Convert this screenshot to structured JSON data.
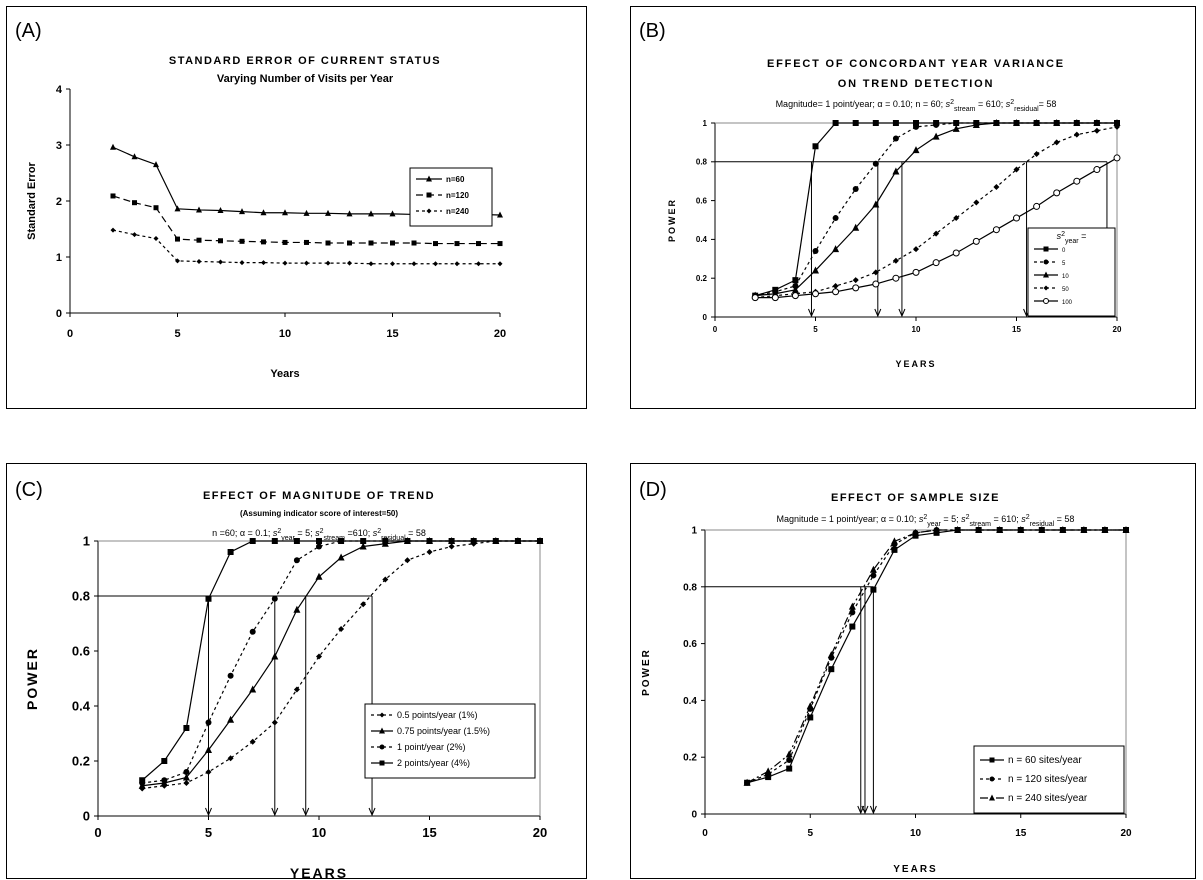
{
  "chart_data": [
    {
      "panel_label": "(A)",
      "type": "line",
      "title": "STANDARD ERROR OF CURRENT STATUS",
      "subtitle": "Varying Number of Visits per Year",
      "xlabel": "Years",
      "ylabel": "Standard Error",
      "xlim": [
        0,
        20
      ],
      "ylim": [
        0,
        4
      ],
      "xticks": [
        "0",
        "5",
        "10",
        "15",
        "20"
      ],
      "yticks": [
        "0",
        "1",
        "2",
        "3",
        "4"
      ],
      "grid": false,
      "legend_placement": "right",
      "x": [
        2,
        3,
        4,
        5,
        6,
        7,
        8,
        9,
        10,
        11,
        12,
        13,
        14,
        15,
        16,
        17,
        18,
        19,
        20
      ],
      "series": [
        {
          "name": "n=60",
          "marker": "triangle",
          "dash": "solid",
          "values": [
            2.96,
            2.79,
            2.65,
            1.86,
            1.84,
            1.83,
            1.81,
            1.79,
            1.79,
            1.78,
            1.78,
            1.77,
            1.77,
            1.77,
            1.76,
            1.76,
            1.76,
            1.76,
            1.75
          ]
        },
        {
          "name": "n=120",
          "marker": "square",
          "dash": "dash",
          "values": [
            2.09,
            1.97,
            1.88,
            1.32,
            1.3,
            1.29,
            1.28,
            1.27,
            1.26,
            1.26,
            1.25,
            1.25,
            1.25,
            1.25,
            1.25,
            1.24,
            1.24,
            1.24,
            1.24
          ]
        },
        {
          "name": "n=240",
          "marker": "diamond",
          "dash": "dot",
          "values": [
            1.48,
            1.4,
            1.33,
            0.93,
            0.92,
            0.91,
            0.9,
            0.9,
            0.89,
            0.89,
            0.89,
            0.89,
            0.88,
            0.88,
            0.88,
            0.88,
            0.88,
            0.88,
            0.88
          ]
        }
      ]
    },
    {
      "panel_label": "(B)",
      "type": "line",
      "title": "EFFECT OF CONCORDANT YEAR VARIANCE",
      "title2": "ON TREND DETECTION",
      "params": "Magnitude= 1 point/year; α = 0.10; n = 60; s²stream = 610; s²residual = 58",
      "xlabel": "YEARS",
      "ylabel": "POWER",
      "xlim": [
        0,
        20
      ],
      "ylim": [
        0,
        1
      ],
      "xticks": [
        "0",
        "5",
        "10",
        "15",
        "20"
      ],
      "yticks": [
        "0",
        "0.2",
        "0.4",
        "0.6",
        "0.8",
        "1"
      ],
      "legend_title": "s²year =",
      "legend_placement": "bottom-right",
      "reference_line": 0.8,
      "arrows_at_x": [
        4.8,
        8.1,
        9.3,
        15.5,
        19.5
      ],
      "x": [
        2,
        3,
        4,
        5,
        6,
        7,
        8,
        9,
        10,
        11,
        12,
        13,
        14,
        15,
        16,
        17,
        18,
        19,
        20
      ],
      "series": [
        {
          "name": "0",
          "marker": "square",
          "dash": "solid",
          "values": [
            0.11,
            0.14,
            0.19,
            0.88,
            1.0,
            1.0,
            1.0,
            1.0,
            1.0,
            1.0,
            1.0,
            1.0,
            1.0,
            1.0,
            1.0,
            1.0,
            1.0,
            1.0,
            1.0
          ]
        },
        {
          "name": "5",
          "marker": "circle",
          "dash": "dot",
          "values": [
            0.11,
            0.13,
            0.16,
            0.34,
            0.51,
            0.66,
            0.79,
            0.92,
            0.98,
            0.99,
            1.0,
            1.0,
            1.0,
            1.0,
            1.0,
            1.0,
            1.0,
            1.0,
            1.0
          ]
        },
        {
          "name": "10",
          "marker": "triangle",
          "dash": "solid",
          "values": [
            0.11,
            0.12,
            0.14,
            0.24,
            0.35,
            0.46,
            0.58,
            0.75,
            0.86,
            0.93,
            0.97,
            0.99,
            1.0,
            1.0,
            1.0,
            1.0,
            1.0,
            1.0,
            1.0
          ]
        },
        {
          "name": "50",
          "marker": "diamond",
          "dash": "dot",
          "values": [
            0.1,
            0.11,
            0.12,
            0.13,
            0.16,
            0.19,
            0.23,
            0.29,
            0.35,
            0.43,
            0.51,
            0.59,
            0.67,
            0.76,
            0.84,
            0.9,
            0.94,
            0.96,
            0.98
          ]
        },
        {
          "name": "100",
          "marker": "open-circle",
          "dash": "solid",
          "values": [
            0.1,
            0.1,
            0.11,
            0.12,
            0.13,
            0.15,
            0.17,
            0.2,
            0.23,
            0.28,
            0.33,
            0.39,
            0.45,
            0.51,
            0.57,
            0.64,
            0.7,
            0.76,
            0.82
          ]
        }
      ]
    },
    {
      "panel_label": "(C)",
      "type": "line",
      "title": "EFFECT OF MAGNITUDE OF TREND",
      "subtitle": "(Assuming indicator score of interest=50)",
      "params": "n =60; α = 0.1; s²year = 5; s²stream =610; s²residual = 58",
      "xlabel": "YEARS",
      "ylabel": "POWER",
      "xlim": [
        0,
        20
      ],
      "ylim": [
        0,
        1
      ],
      "xticks": [
        "0",
        "5",
        "10",
        "15",
        "20"
      ],
      "yticks": [
        "0",
        "0.2",
        "0.4",
        "0.6",
        "0.8",
        "1"
      ],
      "legend_placement": "right",
      "reference_line": 0.8,
      "arrows_at_x": [
        5,
        8,
        9.4,
        12.4
      ],
      "x": [
        2,
        3,
        4,
        5,
        6,
        7,
        8,
        9,
        10,
        11,
        12,
        13,
        14,
        15,
        16,
        17,
        18,
        19,
        20
      ],
      "series": [
        {
          "name": "0.5 points/year (1%)",
          "marker": "diamond",
          "dash": "dot",
          "values": [
            0.1,
            0.11,
            0.12,
            0.16,
            0.21,
            0.27,
            0.34,
            0.46,
            0.58,
            0.68,
            0.77,
            0.86,
            0.93,
            0.96,
            0.98,
            0.99,
            1.0,
            1.0,
            1.0
          ]
        },
        {
          "name": "0.75 points/year (1.5%)",
          "marker": "triangle",
          "dash": "solid",
          "values": [
            0.11,
            0.12,
            0.14,
            0.24,
            0.35,
            0.46,
            0.58,
            0.75,
            0.87,
            0.94,
            0.98,
            0.99,
            1.0,
            1.0,
            1.0,
            1.0,
            1.0,
            1.0,
            1.0
          ]
        },
        {
          "name": "1 point/year (2%)",
          "marker": "circle",
          "dash": "dot",
          "values": [
            0.12,
            0.13,
            0.16,
            0.34,
            0.51,
            0.67,
            0.79,
            0.93,
            0.98,
            1.0,
            1.0,
            1.0,
            1.0,
            1.0,
            1.0,
            1.0,
            1.0,
            1.0,
            1.0
          ]
        },
        {
          "name": "2 points/year (4%)",
          "marker": "square",
          "dash": "solid",
          "values": [
            0.13,
            0.2,
            0.32,
            0.79,
            0.96,
            1.0,
            1.0,
            1.0,
            1.0,
            1.0,
            1.0,
            1.0,
            1.0,
            1.0,
            1.0,
            1.0,
            1.0,
            1.0,
            1.0
          ]
        }
      ]
    },
    {
      "panel_label": "(D)",
      "type": "line",
      "title": "EFFECT OF SAMPLE SIZE",
      "params": "Magnitude = 1 point/year; α = 0.10; s²year = 5; s²stream = 610; s²residual = 58",
      "xlabel": "YEARS",
      "ylabel": "POWER",
      "xlim": [
        0,
        20
      ],
      "ylim": [
        0,
        1
      ],
      "xticks": [
        "0",
        "5",
        "10",
        "15",
        "20"
      ],
      "yticks": [
        "0",
        "0.2",
        "0.4",
        "0.6",
        "0.8",
        "1"
      ],
      "legend_placement": "bottom-right",
      "reference_line": 0.8,
      "arrows_at_x": [
        7.4,
        7.6,
        8.0
      ],
      "x": [
        2,
        3,
        4,
        5,
        6,
        7,
        8,
        9,
        10,
        11,
        12,
        13,
        14,
        15,
        16,
        17,
        18,
        19,
        20
      ],
      "series": [
        {
          "name": "n = 60 sites/year",
          "marker": "square",
          "dash": "solid",
          "values": [
            0.11,
            0.13,
            0.16,
            0.34,
            0.51,
            0.66,
            0.79,
            0.93,
            0.98,
            0.99,
            1.0,
            1.0,
            1.0,
            1.0,
            1.0,
            1.0,
            1.0,
            1.0,
            1.0
          ]
        },
        {
          "name": "n = 120 sites/year",
          "marker": "circle",
          "dash": "dot",
          "values": [
            0.11,
            0.14,
            0.19,
            0.37,
            0.55,
            0.71,
            0.84,
            0.95,
            0.99,
            1.0,
            1.0,
            1.0,
            1.0,
            1.0,
            1.0,
            1.0,
            1.0,
            1.0,
            1.0
          ]
        },
        {
          "name": "n = 240 sites/year",
          "marker": "triangle",
          "dash": "dashdot",
          "values": [
            0.11,
            0.15,
            0.21,
            0.38,
            0.56,
            0.73,
            0.86,
            0.96,
            0.99,
            1.0,
            1.0,
            1.0,
            1.0,
            1.0,
            1.0,
            1.0,
            1.0,
            1.0,
            1.0
          ]
        }
      ]
    }
  ]
}
